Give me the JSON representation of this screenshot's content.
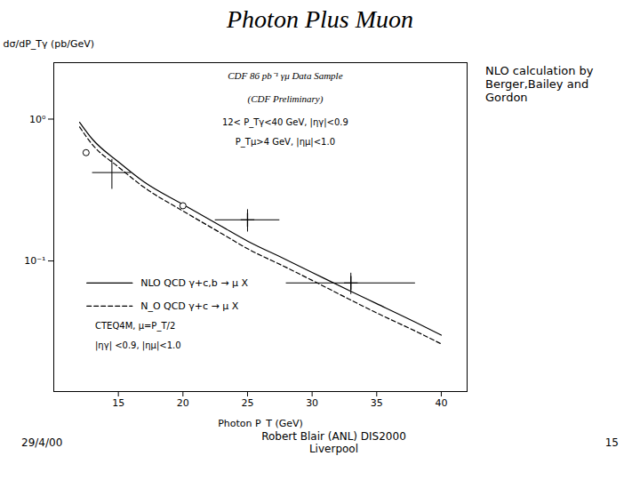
{
  "chart_data": {
    "type": "line",
    "title": "Photon Plus Muon",
    "x_label": "Photon P_T (GeV)",
    "y_label": "dσ/dP_Tγ (pb/GeV)",
    "log": "y",
    "grid": false,
    "legend": "lower left",
    "xlim": [
      10,
      42
    ],
    "xticks": [
      15,
      20,
      25,
      30,
      35,
      40
    ],
    "ylim": [
      0.012,
      2.5
    ],
    "yticks": [
      {
        "value": 0.1,
        "label": "10⁻¹"
      },
      {
        "value": 1,
        "label": "10⁰"
      }
    ],
    "series": [
      {
        "name": "NLO QCD γ+c,b → μ X",
        "type": "line",
        "line_style": "solid",
        "color": "black",
        "x": [
          12,
          13,
          15,
          17,
          20,
          23,
          25,
          28,
          30,
          33,
          35,
          38,
          40
        ],
        "values": [
          0.95,
          0.72,
          0.5,
          0.36,
          0.25,
          0.175,
          0.138,
          0.102,
          0.083,
          0.061,
          0.05,
          0.037,
          0.03
        ]
      },
      {
        "name": "N_O QCD γ+c → μ X",
        "type": "line",
        "line_style": "dashed",
        "color": "black",
        "x": [
          12,
          13,
          15,
          17,
          20,
          23,
          25,
          28,
          30,
          33,
          35,
          38,
          40
        ],
        "values": [
          0.88,
          0.66,
          0.46,
          0.33,
          0.225,
          0.156,
          0.122,
          0.09,
          0.073,
          0.053,
          0.043,
          0.032,
          0.026
        ]
      },
      {
        "type": "scatter",
        "marker": "open_circle",
        "color": "black",
        "x": [
          12.5,
          20.0
        ],
        "values": [
          0.58,
          0.245
        ]
      },
      {
        "type": "errorbar",
        "marker": "none",
        "color": "black",
        "x": [
          14.5
        ],
        "values": [
          0.42
        ],
        "xerr_low": [
          1.5
        ],
        "xerr_high": [
          1.5
        ],
        "yerr_low": [
          0.1
        ],
        "yerr_high": [
          0.1
        ]
      },
      {
        "type": "errorbar",
        "marker": "plus",
        "color": "black",
        "x": [
          25.0,
          33.0
        ],
        "values": [
          0.195,
          0.07
        ],
        "xerr_low": [
          2.5,
          5.0
        ],
        "xerr_high": [
          2.5,
          5.0
        ],
        "yerr_low": [
          0.035,
          0.012
        ],
        "yerr_high": [
          0.035,
          0.012
        ]
      }
    ],
    "annotations": [
      "CDF 86 pb⁻¹ γμ Data Sample",
      "(CDF Preliminary)",
      "12< P_Tγ<40 GeV, |ηγ|<0.9",
      "P_Tμ>4 GeV, |ημ|<1.0"
    ],
    "legend_notes": [
      "CTEQ4M, μ=P_T/2",
      "|ηγ| <0.9, |ημ|<1.0"
    ],
    "side_note": "NLO calculation by\nBerger,Bailey and\nGordon",
    "footer": {
      "left": "29/4/00",
      "center": [
        "Robert Blair (ANL) DIS2000",
        "Liverpool"
      ],
      "right": "15"
    }
  }
}
